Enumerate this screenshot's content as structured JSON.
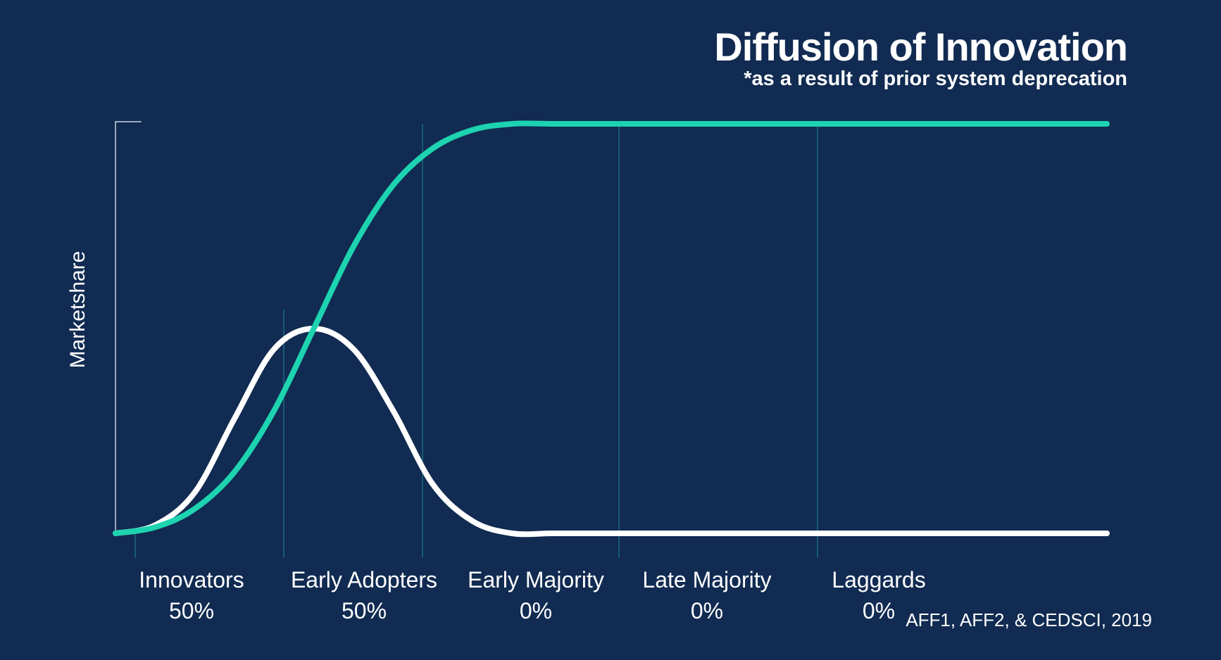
{
  "chart_data": {
    "type": "line",
    "title": "Diffusion of Innovation",
    "subtitle": "*as a result of prior system deprecation",
    "ylabel": "Marketshare",
    "xlabel": "",
    "categories": [
      {
        "name": "Innovators",
        "share": "50%"
      },
      {
        "name": "Early Adopters",
        "share": "50%"
      },
      {
        "name": "Early Majority",
        "share": "0%"
      },
      {
        "name": "Late Majority",
        "share": "0%"
      },
      {
        "name": "Laggards",
        "share": "0%"
      }
    ],
    "x_range": [
      0,
      5
    ],
    "y_range": [
      0,
      100
    ],
    "series": [
      {
        "kind": "adoption-bell",
        "color": "#ffffff",
        "x": [
          0,
          0.2,
          0.4,
          0.6,
          0.8,
          1.0,
          1.2,
          1.4,
          1.6,
          1.8,
          2.0,
          2.2,
          2.4,
          2.6,
          2.8,
          3.0,
          3.5,
          4.0,
          4.5,
          5.0
        ],
        "y": [
          0,
          2,
          10,
          28,
          45,
          50,
          45,
          30,
          12,
          3,
          0,
          0,
          0,
          0,
          0,
          0,
          0,
          0,
          0,
          0
        ]
      },
      {
        "kind": "cumulative-adoption",
        "color": "#1dd3b0",
        "x": [
          0,
          0.2,
          0.4,
          0.6,
          0.8,
          1.0,
          1.2,
          1.4,
          1.6,
          1.8,
          2.0,
          2.2,
          2.4,
          2.6,
          2.8,
          3.0,
          3.5,
          4.0,
          4.5,
          5.0
        ],
        "y": [
          0,
          1.5,
          6,
          15,
          30,
          50,
          70,
          85,
          94,
          98.5,
          100,
          100,
          100,
          100,
          100,
          100,
          100,
          100,
          100,
          100
        ]
      }
    ],
    "grid": false,
    "source": "AFF1, AFF2, & CEDSCI, 2019"
  },
  "colors": {
    "background": "#112b52",
    "curve": "#1dd3b0",
    "bell": "#ffffff",
    "divider": "#1b7a8a"
  }
}
